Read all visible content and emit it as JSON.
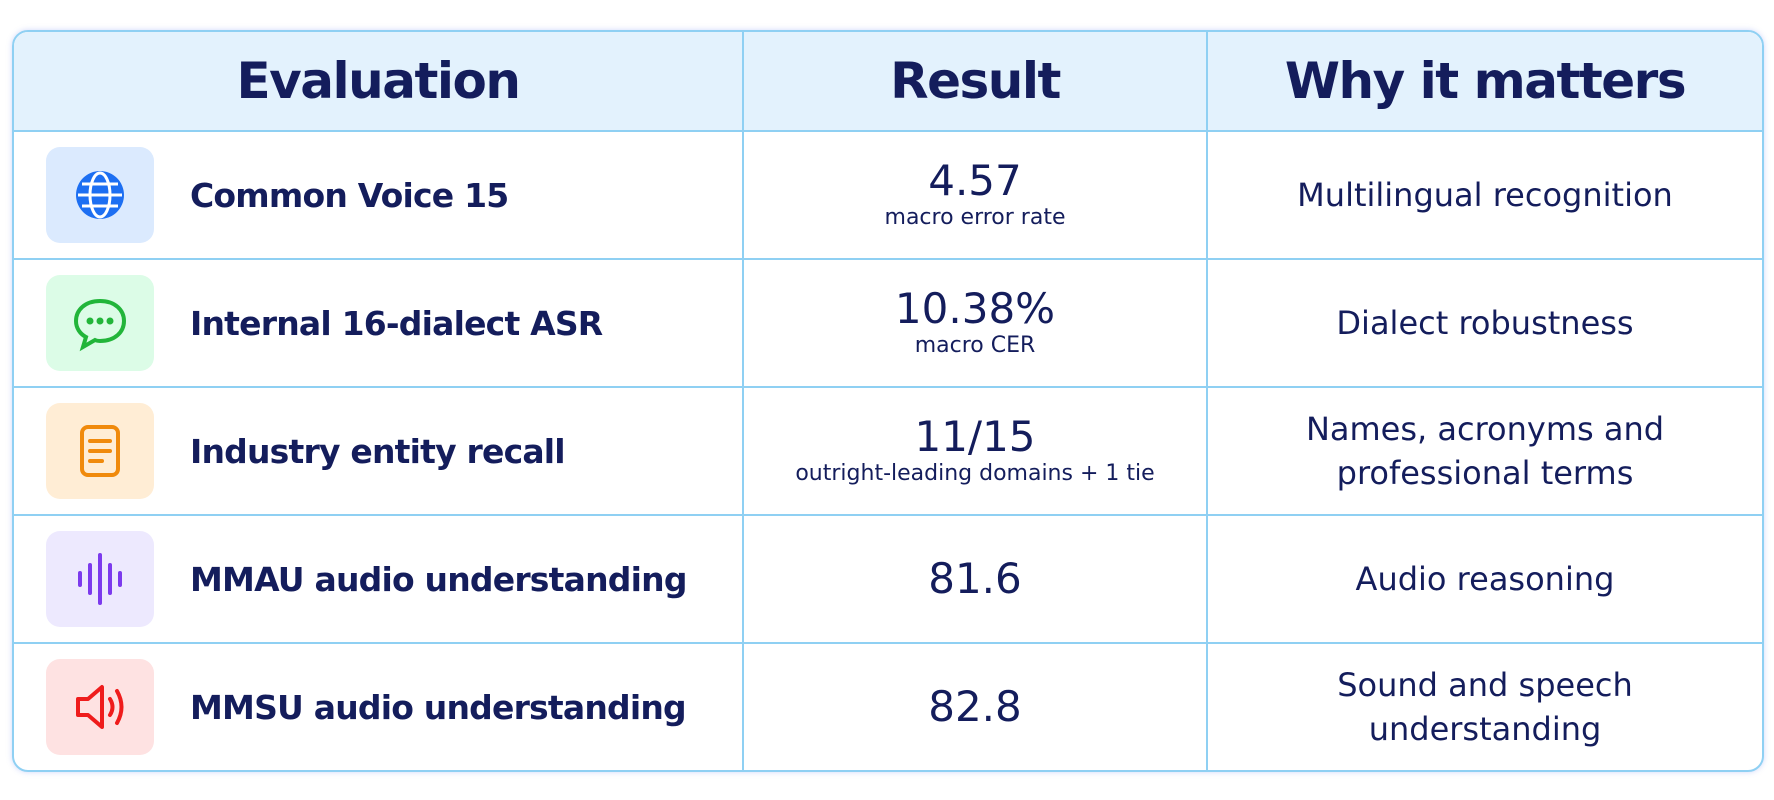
{
  "table": {
    "header": [
      "Evaluation",
      "Result",
      "Why it matters"
    ],
    "rows": [
      {
        "evaluation": "Common Voice 15",
        "result": "4.57",
        "note": "macro error rate",
        "why": [
          "Multilingual recognition"
        ]
      },
      {
        "evaluation": "Internal 16-dialect ASR",
        "result": "10.38%",
        "note": "macro CER",
        "why": [
          "Dialect robustness"
        ]
      },
      {
        "evaluation": "Industry entity recall",
        "result": "11/15",
        "note": "outright-leading domains + 1 tie",
        "why": [
          "Names, acronyms and",
          "professional terms"
        ]
      },
      {
        "evaluation": "MMAU audio understanding",
        "result": "81.6",
        "why": [
          "Audio reasoning"
        ]
      },
      {
        "evaluation": "MMSU audio understanding",
        "result": "82.8",
        "why": [
          "Sound and speech",
          "understanding"
        ]
      }
    ]
  }
}
